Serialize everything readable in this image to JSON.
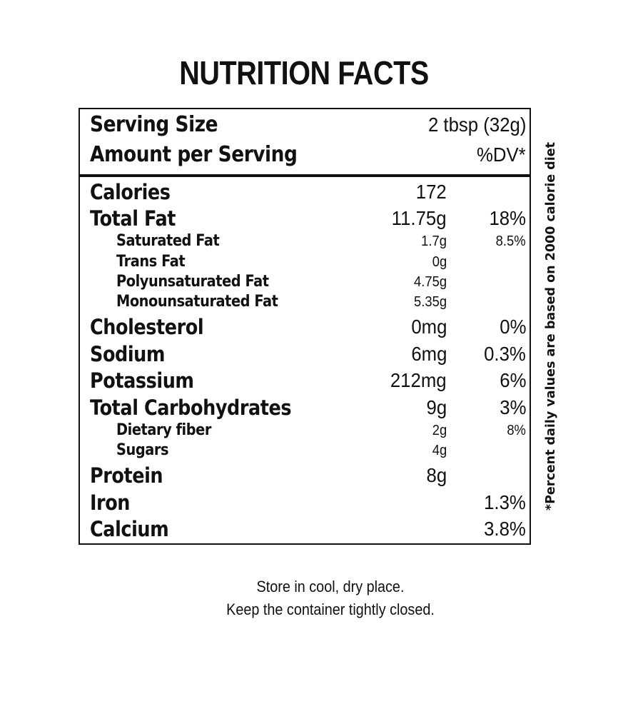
{
  "title": "NUTRITION FACTS",
  "header": {
    "serving_size_label": "Serving Size",
    "serving_size_value": "2 tbsp (32g)",
    "amount_label": "Amount per Serving",
    "dv_label": "%DV*"
  },
  "nutrients": [
    {
      "label": "Calories",
      "amount": "172",
      "dv": ""
    },
    {
      "label": "Total Fat",
      "amount": "11.75g",
      "dv": "18%"
    },
    {
      "label": "Saturated Fat",
      "amount": "1.7g",
      "dv": "8.5%"
    },
    {
      "label": "Trans Fat",
      "amount": "0g",
      "dv": ""
    },
    {
      "label": "Polyunsaturated Fat",
      "amount": "4.75g",
      "dv": ""
    },
    {
      "label": "Monounsaturated Fat",
      "amount": "5.35g",
      "dv": ""
    },
    {
      "label": "Cholesterol",
      "amount": "0mg",
      "dv": "0%"
    },
    {
      "label": "Sodium",
      "amount": "6mg",
      "dv": "0.3%"
    },
    {
      "label": "Potassium",
      "amount": "212mg",
      "dv": "6%"
    },
    {
      "label": "Total Carbohydrates",
      "amount": "9g",
      "dv": "3%"
    },
    {
      "label": "Dietary fiber",
      "amount": "2g",
      "dv": "8%"
    },
    {
      "label": "Sugars",
      "amount": "4g",
      "dv": ""
    },
    {
      "label": "Protein",
      "amount": "8g",
      "dv": ""
    },
    {
      "label": "Iron",
      "amount": "",
      "dv": "1.3%"
    },
    {
      "label": "Calcium",
      "amount": "",
      "dv": "3.8%"
    }
  ],
  "side_note": "*Percent daily values are based on 2000 calorie diet",
  "footer": {
    "line1": "Store in cool, dry place.",
    "line2": "Keep the container tightly closed."
  }
}
